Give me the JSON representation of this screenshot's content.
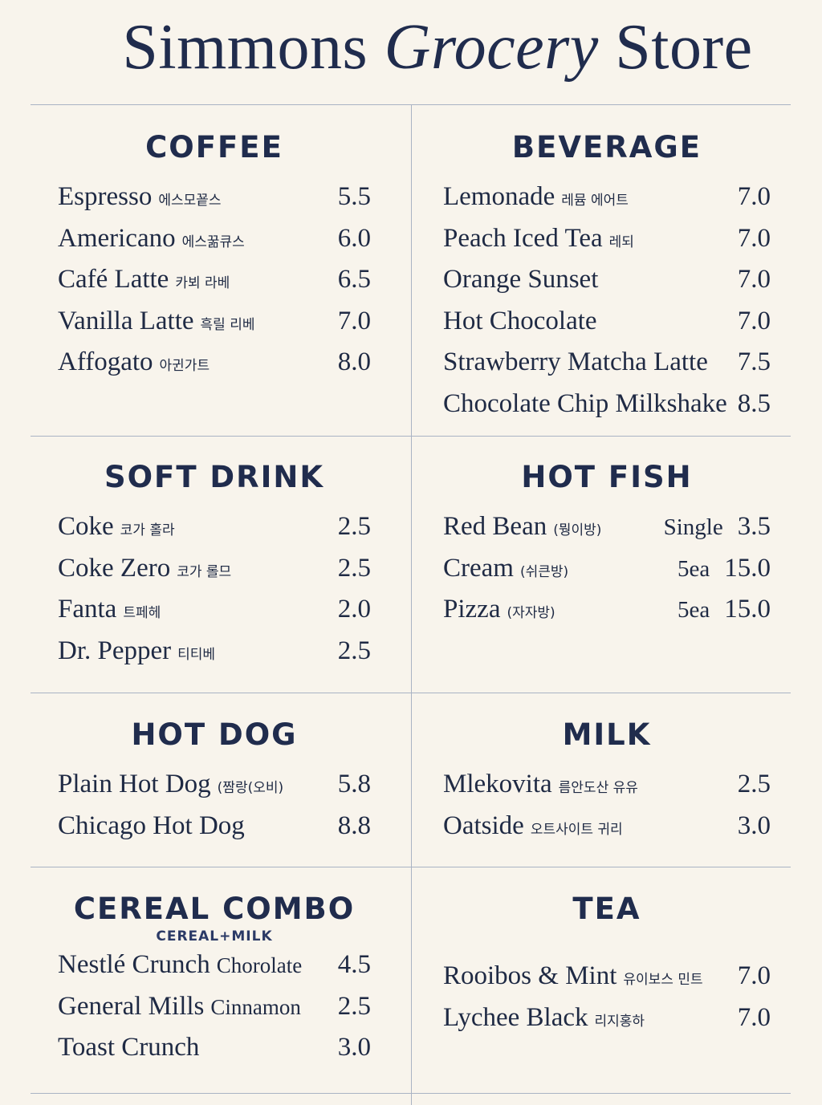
{
  "title": {
    "part1": "Simmons",
    "part2": "Grocery",
    "part3": "Store"
  },
  "sections": {
    "coffee": {
      "heading": "COFFEE",
      "items": [
        {
          "name": "Espresso",
          "sub": "에스모꾵스",
          "price": "5.5"
        },
        {
          "name": "Americano",
          "sub": "에스꿂큐스",
          "price": "6.0"
        },
        {
          "name": "Café Latte",
          "sub": "카뵈 라베",
          "price": "6.5"
        },
        {
          "name": "Vanilla Latte",
          "sub": "흑릴 리베",
          "price": "7.0"
        },
        {
          "name": "Affogato",
          "sub": "아귄가트",
          "price": "8.0"
        }
      ]
    },
    "beverage": {
      "heading": "BEVERAGE",
      "items": [
        {
          "name": "Lemonade",
          "sub": "레뮴 에어트",
          "price": "7.0"
        },
        {
          "name": "Peach Iced Tea",
          "sub": "레되",
          "price": "7.0"
        },
        {
          "name": "Orange Sunset",
          "sub": "",
          "price": "7.0"
        },
        {
          "name": "Hot Chocolate",
          "sub": "",
          "price": "7.0"
        },
        {
          "name": "Strawberry Matcha Latte",
          "sub": "",
          "price": "7.5"
        },
        {
          "name": "Chocolate Chip Milkshake",
          "sub": "",
          "price": "8.5"
        }
      ]
    },
    "soft_drink": {
      "heading": "SOFT DRINK",
      "items": [
        {
          "name": "Coke",
          "sub": "코가 홀라",
          "price": "2.5"
        },
        {
          "name": "Coke Zero",
          "sub": "코가 롤므",
          "price": "2.5"
        },
        {
          "name": "Fanta",
          "sub": "트페헤",
          "price": "2.0"
        },
        {
          "name": "Dr. Pepper",
          "sub": "티티베",
          "price": "2.5"
        }
      ]
    },
    "hot_fish": {
      "heading": "HOT FISH",
      "items": [
        {
          "name": "Red Bean",
          "sub": "(뭥이방)",
          "qty": "Single",
          "price": "3.5"
        },
        {
          "name": "Cream",
          "sub": "(쉬큰방)",
          "qty": "5ea",
          "price": "15.0"
        },
        {
          "name": "Pizza",
          "sub": "(자자방)",
          "qty": "5ea",
          "price": "15.0"
        }
      ]
    },
    "hot_dog": {
      "heading": "HOT DOG",
      "items": [
        {
          "name": "Plain Hot Dog",
          "sub": "(짬랑(오비)",
          "price": "5.8"
        },
        {
          "name": "Chicago Hot Dog",
          "sub": "",
          "price": "8.8"
        }
      ]
    },
    "milk": {
      "heading": "MILK",
      "items": [
        {
          "name": "Mlekovita",
          "sub": "름안도산 유유",
          "price": "2.5"
        },
        {
          "name": "Oatside",
          "sub": "오트사이트 귀리",
          "price": "3.0"
        }
      ]
    },
    "cereal_combo": {
      "heading": "CEREAL COMBO",
      "subheading": "CEREAL+MILK",
      "items": [
        {
          "name": "Nestlé Crunch",
          "sub": "Chorolate",
          "price": "4.5"
        },
        {
          "name": "General Mills",
          "sub": "Cinnamon",
          "price": "2.5"
        },
        {
          "name": "Toast Crunch",
          "sub": "",
          "price": "3.0"
        }
      ]
    },
    "tea": {
      "heading": "TEA",
      "items": [
        {
          "name": "Rooibos & Mint",
          "sub": "유이보스 민트",
          "price": "7.0"
        },
        {
          "name": "Lychee Black",
          "sub": "리지홍하",
          "price": "7.0"
        }
      ]
    }
  }
}
